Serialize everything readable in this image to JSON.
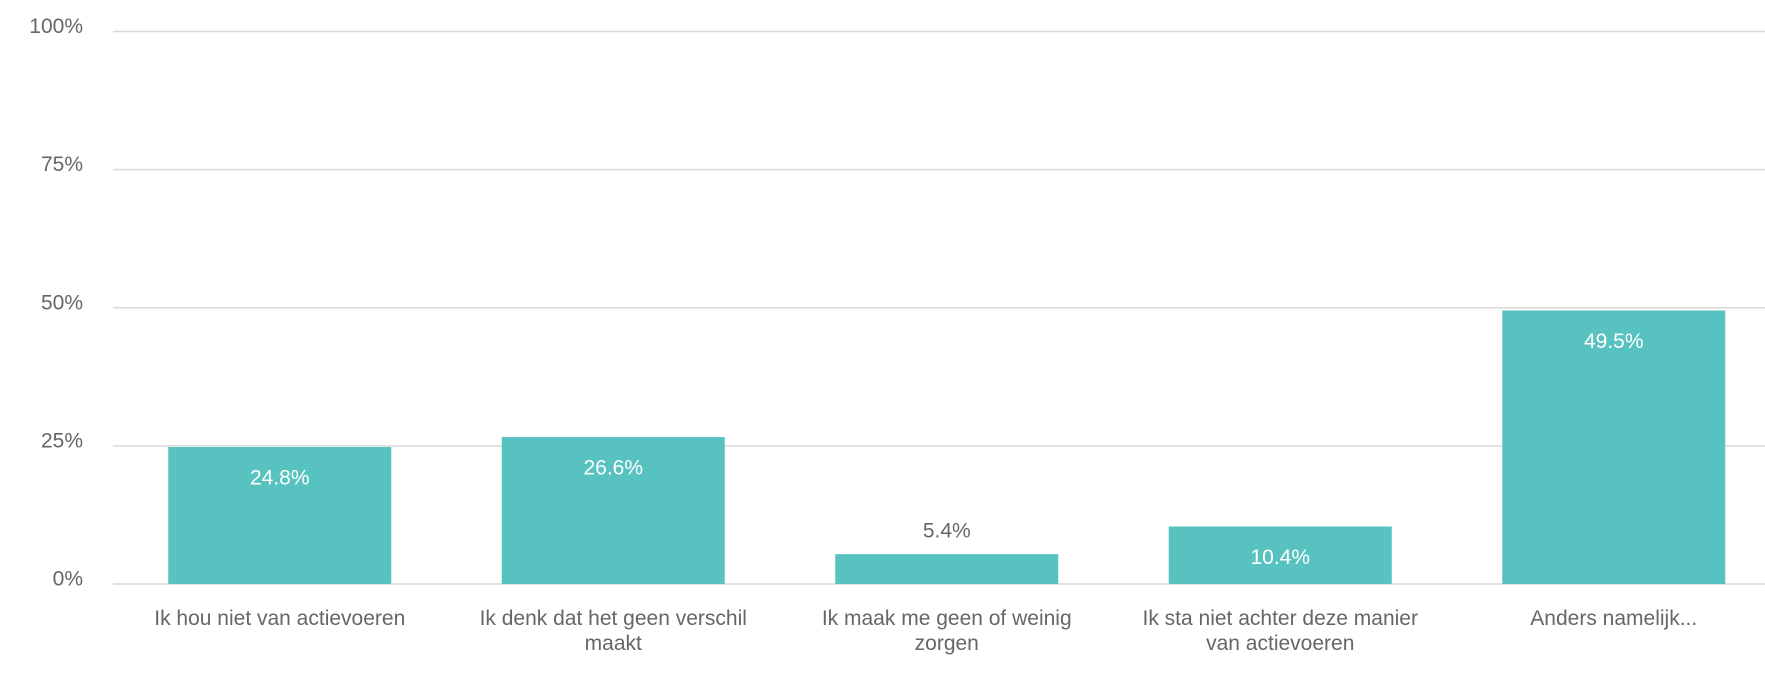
{
  "chart_data": {
    "type": "bar",
    "categories": [
      "Ik hou niet van actievoeren",
      "Ik denk dat het geen verschil maakt",
      "Ik maak me geen of weinig zorgen",
      "Ik sta niet achter deze manier van actievoeren",
      "Anders namelijk..."
    ],
    "values": [
      24.8,
      26.6,
      5.4,
      10.4,
      49.5
    ],
    "value_labels": [
      "24.8%",
      "26.6%",
      "5.4%",
      "10.4%",
      "49.5%"
    ],
    "color": "#57c2bf",
    "ylim": [
      0,
      100
    ],
    "yticks": [
      {
        "value": 0,
        "label": "0%"
      },
      {
        "value": 25,
        "label": "25%"
      },
      {
        "value": 50,
        "label": "50%"
      },
      {
        "value": 75,
        "label": "75%"
      },
      {
        "value": 100,
        "label": "100%"
      }
    ],
    "grid": true
  }
}
